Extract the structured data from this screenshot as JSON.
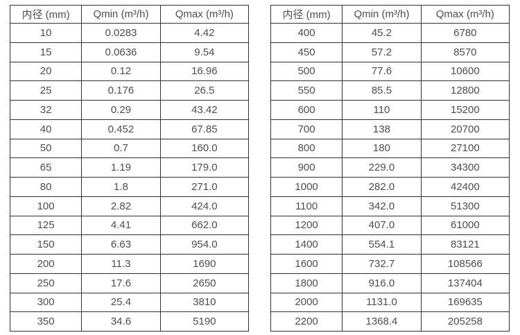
{
  "page": {
    "background": "#ffffff",
    "border_color": "#2f2f2f",
    "text_color": "#4d4d4d"
  },
  "tables": [
    {
      "name": "flow-spec-table-small-diameters",
      "headers": [
        "内径 (mm)",
        "Qmin (m³/h)",
        "Qmax (m³/h)"
      ],
      "rows": [
        [
          "10",
          "0.0283",
          "4.42"
        ],
        [
          "15",
          "0.0636",
          "9.54"
        ],
        [
          "20",
          "0.12",
          "16.96"
        ],
        [
          "25",
          "0.176",
          "26.5"
        ],
        [
          "32",
          "0.29",
          "43.42"
        ],
        [
          "40",
          "0.452",
          "67.85"
        ],
        [
          "50",
          "0.7",
          "160.0"
        ],
        [
          "65",
          "1.19",
          "179.0"
        ],
        [
          "80",
          "1.8",
          "271.0"
        ],
        [
          "100",
          "2.82",
          "424.0"
        ],
        [
          "125",
          "4.41",
          "662.0"
        ],
        [
          "150",
          "6.63",
          "954.0"
        ],
        [
          "200",
          "11.3",
          "1690"
        ],
        [
          "250",
          "17.6",
          "2650"
        ],
        [
          "300",
          "25.4",
          "3810"
        ],
        [
          "350",
          "34.6",
          "5190"
        ]
      ]
    },
    {
      "name": "flow-spec-table-large-diameters",
      "headers": [
        "内径 (mm)",
        "Qmin (m³/h)",
        "Qmax (m³/h)"
      ],
      "rows": [
        [
          "400",
          "45.2",
          "6780"
        ],
        [
          "450",
          "57.2",
          "8570"
        ],
        [
          "500",
          "77.6",
          "10600"
        ],
        [
          "550",
          "85.5",
          "12800"
        ],
        [
          "600",
          "110",
          "15200"
        ],
        [
          "700",
          "138",
          "20700"
        ],
        [
          "800",
          "180",
          "27100"
        ],
        [
          "900",
          "229.0",
          "34300"
        ],
        [
          "1000",
          "282.0",
          "42400"
        ],
        [
          "1100",
          "342.0",
          "51300"
        ],
        [
          "1200",
          "407.0",
          "61000"
        ],
        [
          "1400",
          "554.1",
          "83121"
        ],
        [
          "1600",
          "732.7",
          "108566"
        ],
        [
          "1800",
          "916.0",
          "137404"
        ],
        [
          "2000",
          "1131.0",
          "169635"
        ],
        [
          "2200",
          "1368.4",
          "205258"
        ]
      ]
    }
  ]
}
